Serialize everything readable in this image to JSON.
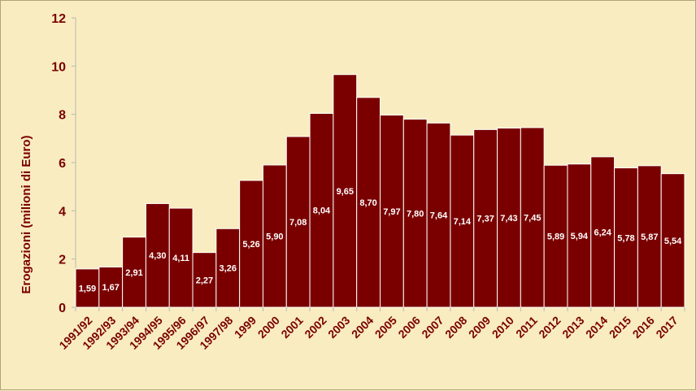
{
  "chart_data": {
    "type": "bar",
    "title": "",
    "xlabel": "",
    "ylabel": "Erogazioni (milioni di Euro)",
    "ylim": [
      0,
      12
    ],
    "yticks": [
      0,
      2,
      4,
      6,
      8,
      10,
      12
    ],
    "grid": false,
    "categories": [
      "1991/92",
      "1992/93",
      "1993/94",
      "1994/95",
      "1995/96",
      "1996/97",
      "1997/98",
      "1999",
      "2000",
      "2001",
      "2002",
      "2003",
      "2004",
      "2005",
      "2006",
      "2007",
      "2008",
      "2009",
      "2010",
      "2011",
      "2012",
      "2013",
      "2014",
      "2015",
      "2016",
      "2017"
    ],
    "values": [
      1.59,
      1.67,
      2.91,
      4.3,
      4.11,
      2.27,
      3.26,
      5.26,
      5.9,
      7.08,
      8.04,
      9.65,
      8.7,
      7.97,
      7.8,
      7.64,
      7.14,
      7.37,
      7.43,
      7.45,
      5.89,
      5.94,
      6.24,
      5.78,
      5.87,
      5.54
    ],
    "data_labels": [
      "1,59",
      "1,67",
      "2,91",
      "4,30",
      "4,11",
      "2,27",
      "3,26",
      "5,26",
      "5,90",
      "7,08",
      "8,04",
      "9,65",
      "8,70",
      "7,97",
      "7,80",
      "7,64",
      "7,14",
      "7,37",
      "7,43",
      "7,45",
      "5,89",
      "5,94",
      "6,24",
      "5,78",
      "5,87",
      "5,54"
    ],
    "colors": {
      "bar": "#7a0000",
      "bar_edge": "#ffffff",
      "text": "#7a0000",
      "background": "#f8ecc0",
      "axis": "#b8b8b8"
    }
  }
}
